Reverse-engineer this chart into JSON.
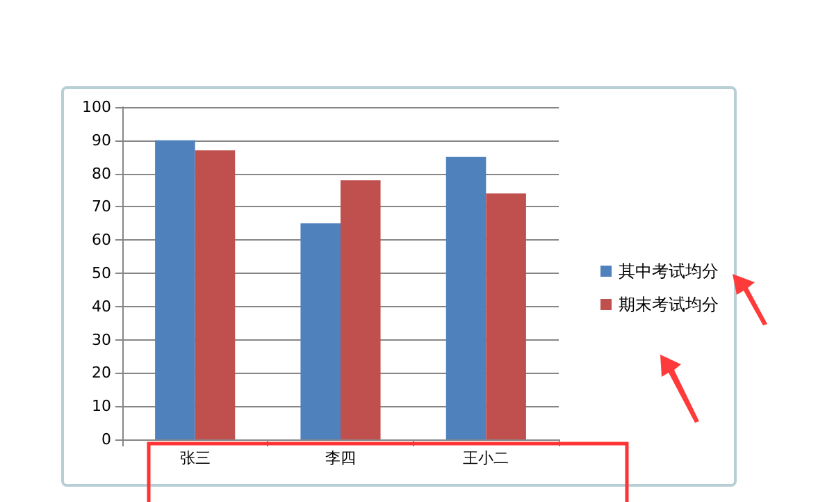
{
  "chart_data": {
    "type": "bar",
    "categories": [
      "张三",
      "李四",
      "王小二"
    ],
    "series": [
      {
        "name": "其中考试均分",
        "color": "#4f81bd",
        "values": [
          90,
          65,
          85
        ]
      },
      {
        "name": "期末考试均分",
        "color": "#c0504d",
        "values": [
          87,
          78,
          74
        ]
      }
    ],
    "ylim": [
      0,
      100
    ],
    "yticks": [
      0,
      10,
      20,
      30,
      40,
      50,
      60,
      70,
      80,
      90,
      100
    ],
    "grid": "y",
    "legend": "right"
  }
}
